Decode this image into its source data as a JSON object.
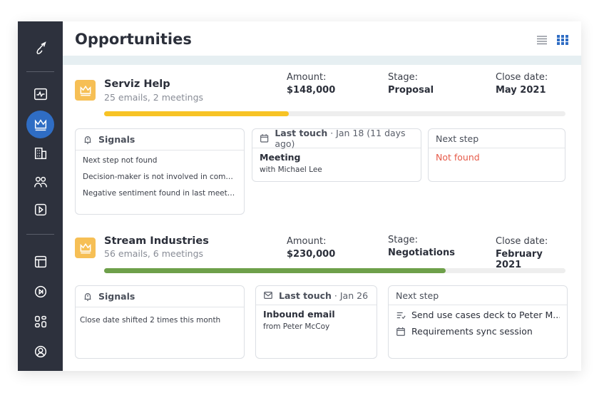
{
  "header": {
    "title": "Opportunities"
  },
  "colors": {
    "sidebar": "#2d313d",
    "active": "#2f6dc4",
    "crown": "#f6bf55",
    "progress_yellow": "#f7c325",
    "progress_green": "#6ea04a",
    "not_found": "#e65b4a"
  },
  "sidebar": {
    "items": [
      {
        "icon": "logo-icon"
      },
      {
        "icon": "activity-icon"
      },
      {
        "icon": "crown-icon",
        "active": true
      },
      {
        "icon": "building-icon"
      },
      {
        "icon": "people-icon"
      },
      {
        "icon": "play-icon"
      },
      {
        "icon": "layout-icon"
      },
      {
        "icon": "skip-icon"
      },
      {
        "icon": "apps-icon"
      },
      {
        "icon": "user-icon"
      }
    ]
  },
  "opportunities": [
    {
      "name": "Serviz Help",
      "sub": "25 emails, 2 meetings",
      "amount_label": "Amount:",
      "amount": "$148,000",
      "stage_label": "Stage:",
      "stage": "Proposal",
      "close_label": "Close date:",
      "close": "May 2021",
      "progress": 0.4,
      "signals": {
        "title": "Signals",
        "items": [
          "Next step not found",
          "Decision-maker is not involved in commu...",
          "Negative sentiment found in last meeting..."
        ]
      },
      "last_touch": {
        "title": "Last touch",
        "date": " · Jan 18 (11 days ago)",
        "type": "Meeting",
        "detail": "with Michael Lee"
      },
      "next_step": {
        "title": "Next step",
        "value": "Not found"
      }
    },
    {
      "name": "Stream Industries",
      "sub": "56 emails, 6 meetings",
      "amount_label": "Amount:",
      "amount": "$230,000",
      "stage_label": "Stage:",
      "stage": "Negotiations",
      "close_label": "Close date:",
      "close": "February 2021",
      "progress": 0.74,
      "signals": {
        "title": "Signals",
        "items": [
          "Close date shifted 2 times this month"
        ]
      },
      "last_touch": {
        "title": "Last touch",
        "date": " · Jan 26",
        "type": "Inbound email",
        "detail": "from Peter McCoy"
      },
      "next_step": {
        "title": "Next step",
        "items": [
          "Send use cases deck to Peter M...",
          "Requirements sync session"
        ]
      }
    }
  ]
}
